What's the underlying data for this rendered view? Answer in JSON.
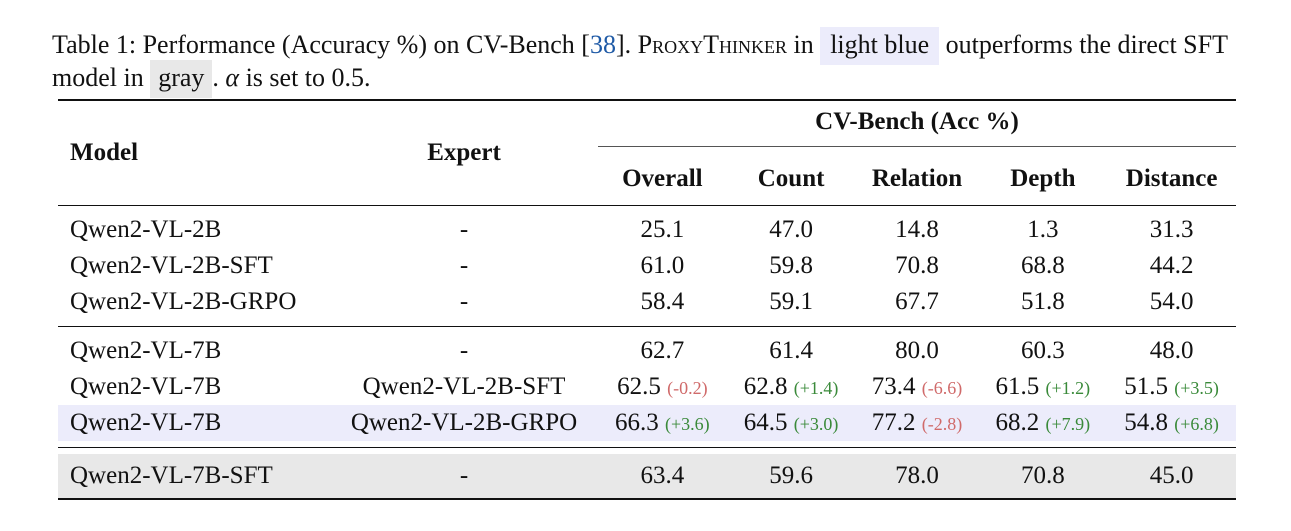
{
  "caption": {
    "label": "Table 1:",
    "text1": "Performance (Accuracy %) on CV-Bench [",
    "cite": "38",
    "text2": "]. ",
    "method": "ProxyThinker",
    "text3": " in ",
    "light_blue": "light blue",
    "text4": " outperforms the direct SFT model in ",
    "gray": "gray",
    "text5": ". ",
    "alpha": "α",
    "text6": " is set to 0.5."
  },
  "table": {
    "headers": {
      "model": "Model",
      "expert": "Expert",
      "group": "CV-Bench (Acc %)",
      "cols": [
        "Overall",
        "Count",
        "Relation",
        "Depth",
        "Distance"
      ]
    },
    "rows": [
      {
        "model": "Qwen2-VL-2B",
        "expert": "-",
        "vals": [
          "25.1",
          "47.0",
          "14.8",
          "1.3",
          "31.3"
        ]
      },
      {
        "model": "Qwen2-VL-2B-SFT",
        "expert": "-",
        "vals": [
          "61.0",
          "59.8",
          "70.8",
          "68.8",
          "44.2"
        ]
      },
      {
        "model": "Qwen2-VL-2B-GRPO",
        "expert": "-",
        "vals": [
          "58.4",
          "59.1",
          "67.7",
          "51.8",
          "54.0"
        ]
      },
      {
        "model": "Qwen2-VL-7B",
        "expert": "-",
        "vals": [
          "62.7",
          "61.4",
          "80.0",
          "60.3",
          "48.0"
        ]
      },
      {
        "model": "Qwen2-VL-7B",
        "expert": "Qwen2-VL-2B-SFT",
        "vals": [
          "62.5",
          "62.8",
          "73.4",
          "61.5",
          "51.5"
        ],
        "deltas": [
          "(-0.2)",
          "(+1.4)",
          "(-6.6)",
          "(+1.2)",
          "(+3.5)"
        ]
      },
      {
        "model": "Qwen2-VL-7B",
        "expert": "Qwen2-VL-2B-GRPO",
        "vals": [
          "66.3",
          "64.5",
          "77.2",
          "68.2",
          "54.8"
        ],
        "deltas": [
          "(+3.6)",
          "(+3.0)",
          "(-2.8)",
          "(+7.9)",
          "(+6.8)"
        ]
      },
      {
        "model": "Qwen2-VL-7B-SFT",
        "expert": "-",
        "vals": [
          "63.4",
          "59.6",
          "78.0",
          "70.8",
          "45.0"
        ]
      }
    ]
  },
  "colors": {
    "highlight_blue": "#ececfb",
    "highlight_gray": "#e8e8e8",
    "citation": "#1f5aa6",
    "positive_delta": "#3a8a3a",
    "negative_delta": "#d06a6a"
  }
}
